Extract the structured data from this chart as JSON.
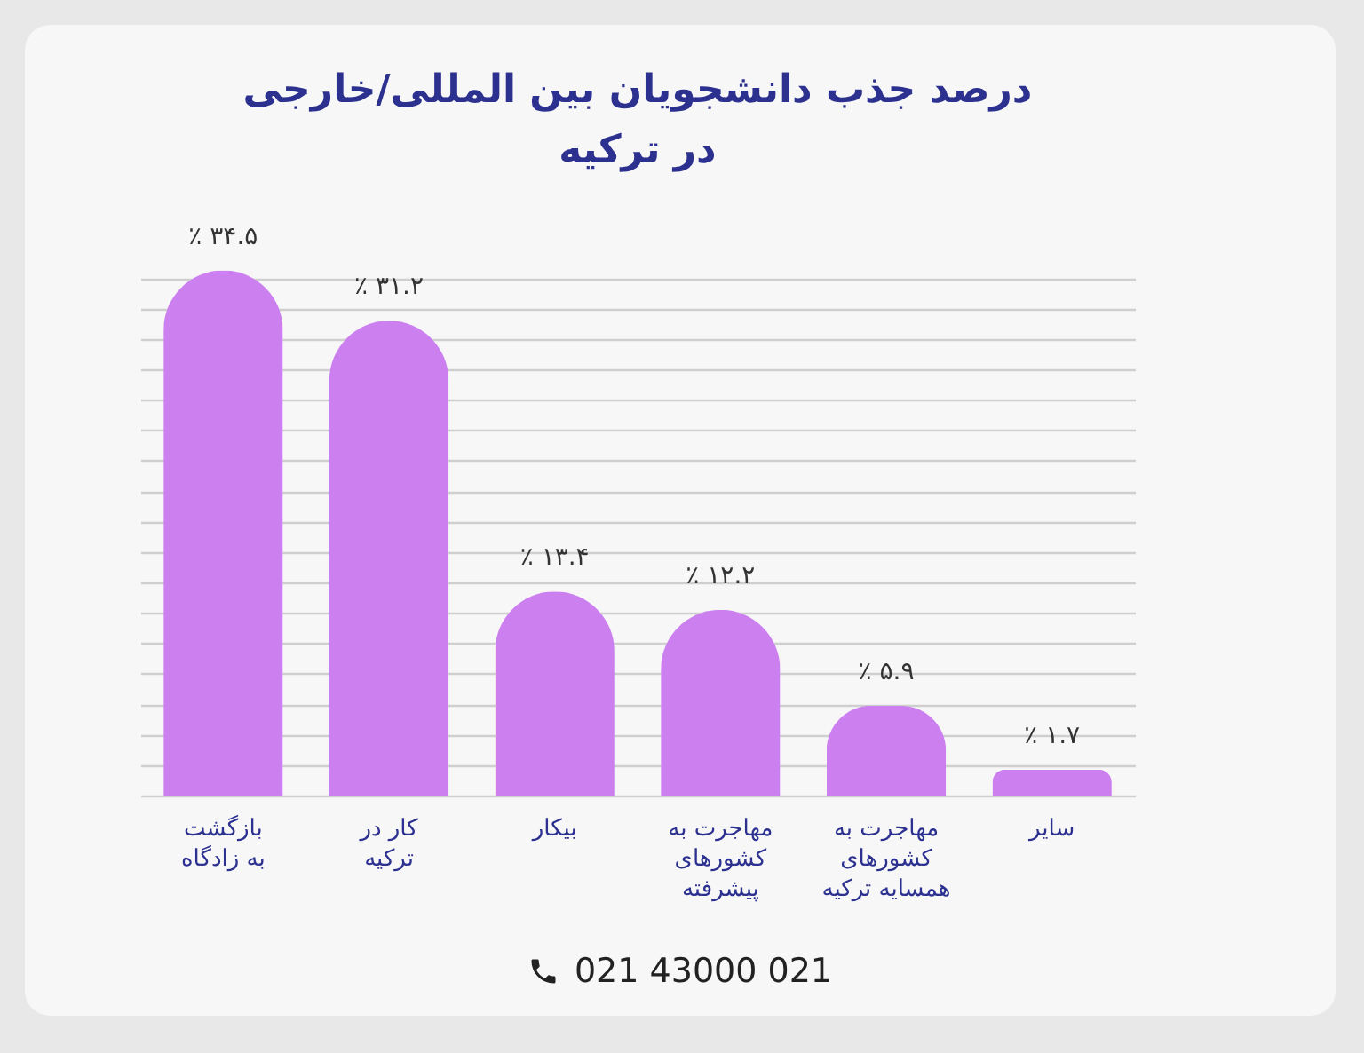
{
  "chart_data": {
    "type": "bar",
    "title": "درصد جذب  دانشجویان بین المللی/خارجی\nدر ترکیه",
    "categories": [
      "بازگشت\nبه زادگاه",
      "کار در\nترکیه",
      "بیکار",
      "مهاجرت به\nکشورهای\nپیشرفته",
      "مهاجرت به\nکشورهای\nهمسایه ترکیه",
      "سایر"
    ],
    "values": [
      34.5,
      31.2,
      13.4,
      12.2,
      5.9,
      1.7
    ],
    "value_labels": [
      "٪ ۳۴.۵",
      "٪ ۳۱.۲",
      "٪ ۱۳.۴",
      "٪ ۱۲.۲",
      "٪ ۵.۹",
      "٪ ۱.۷"
    ],
    "color": "#cc80f0",
    "grid": "y",
    "tick_labels": "x",
    "annotations": [
      "021 43000 021"
    ]
  }
}
